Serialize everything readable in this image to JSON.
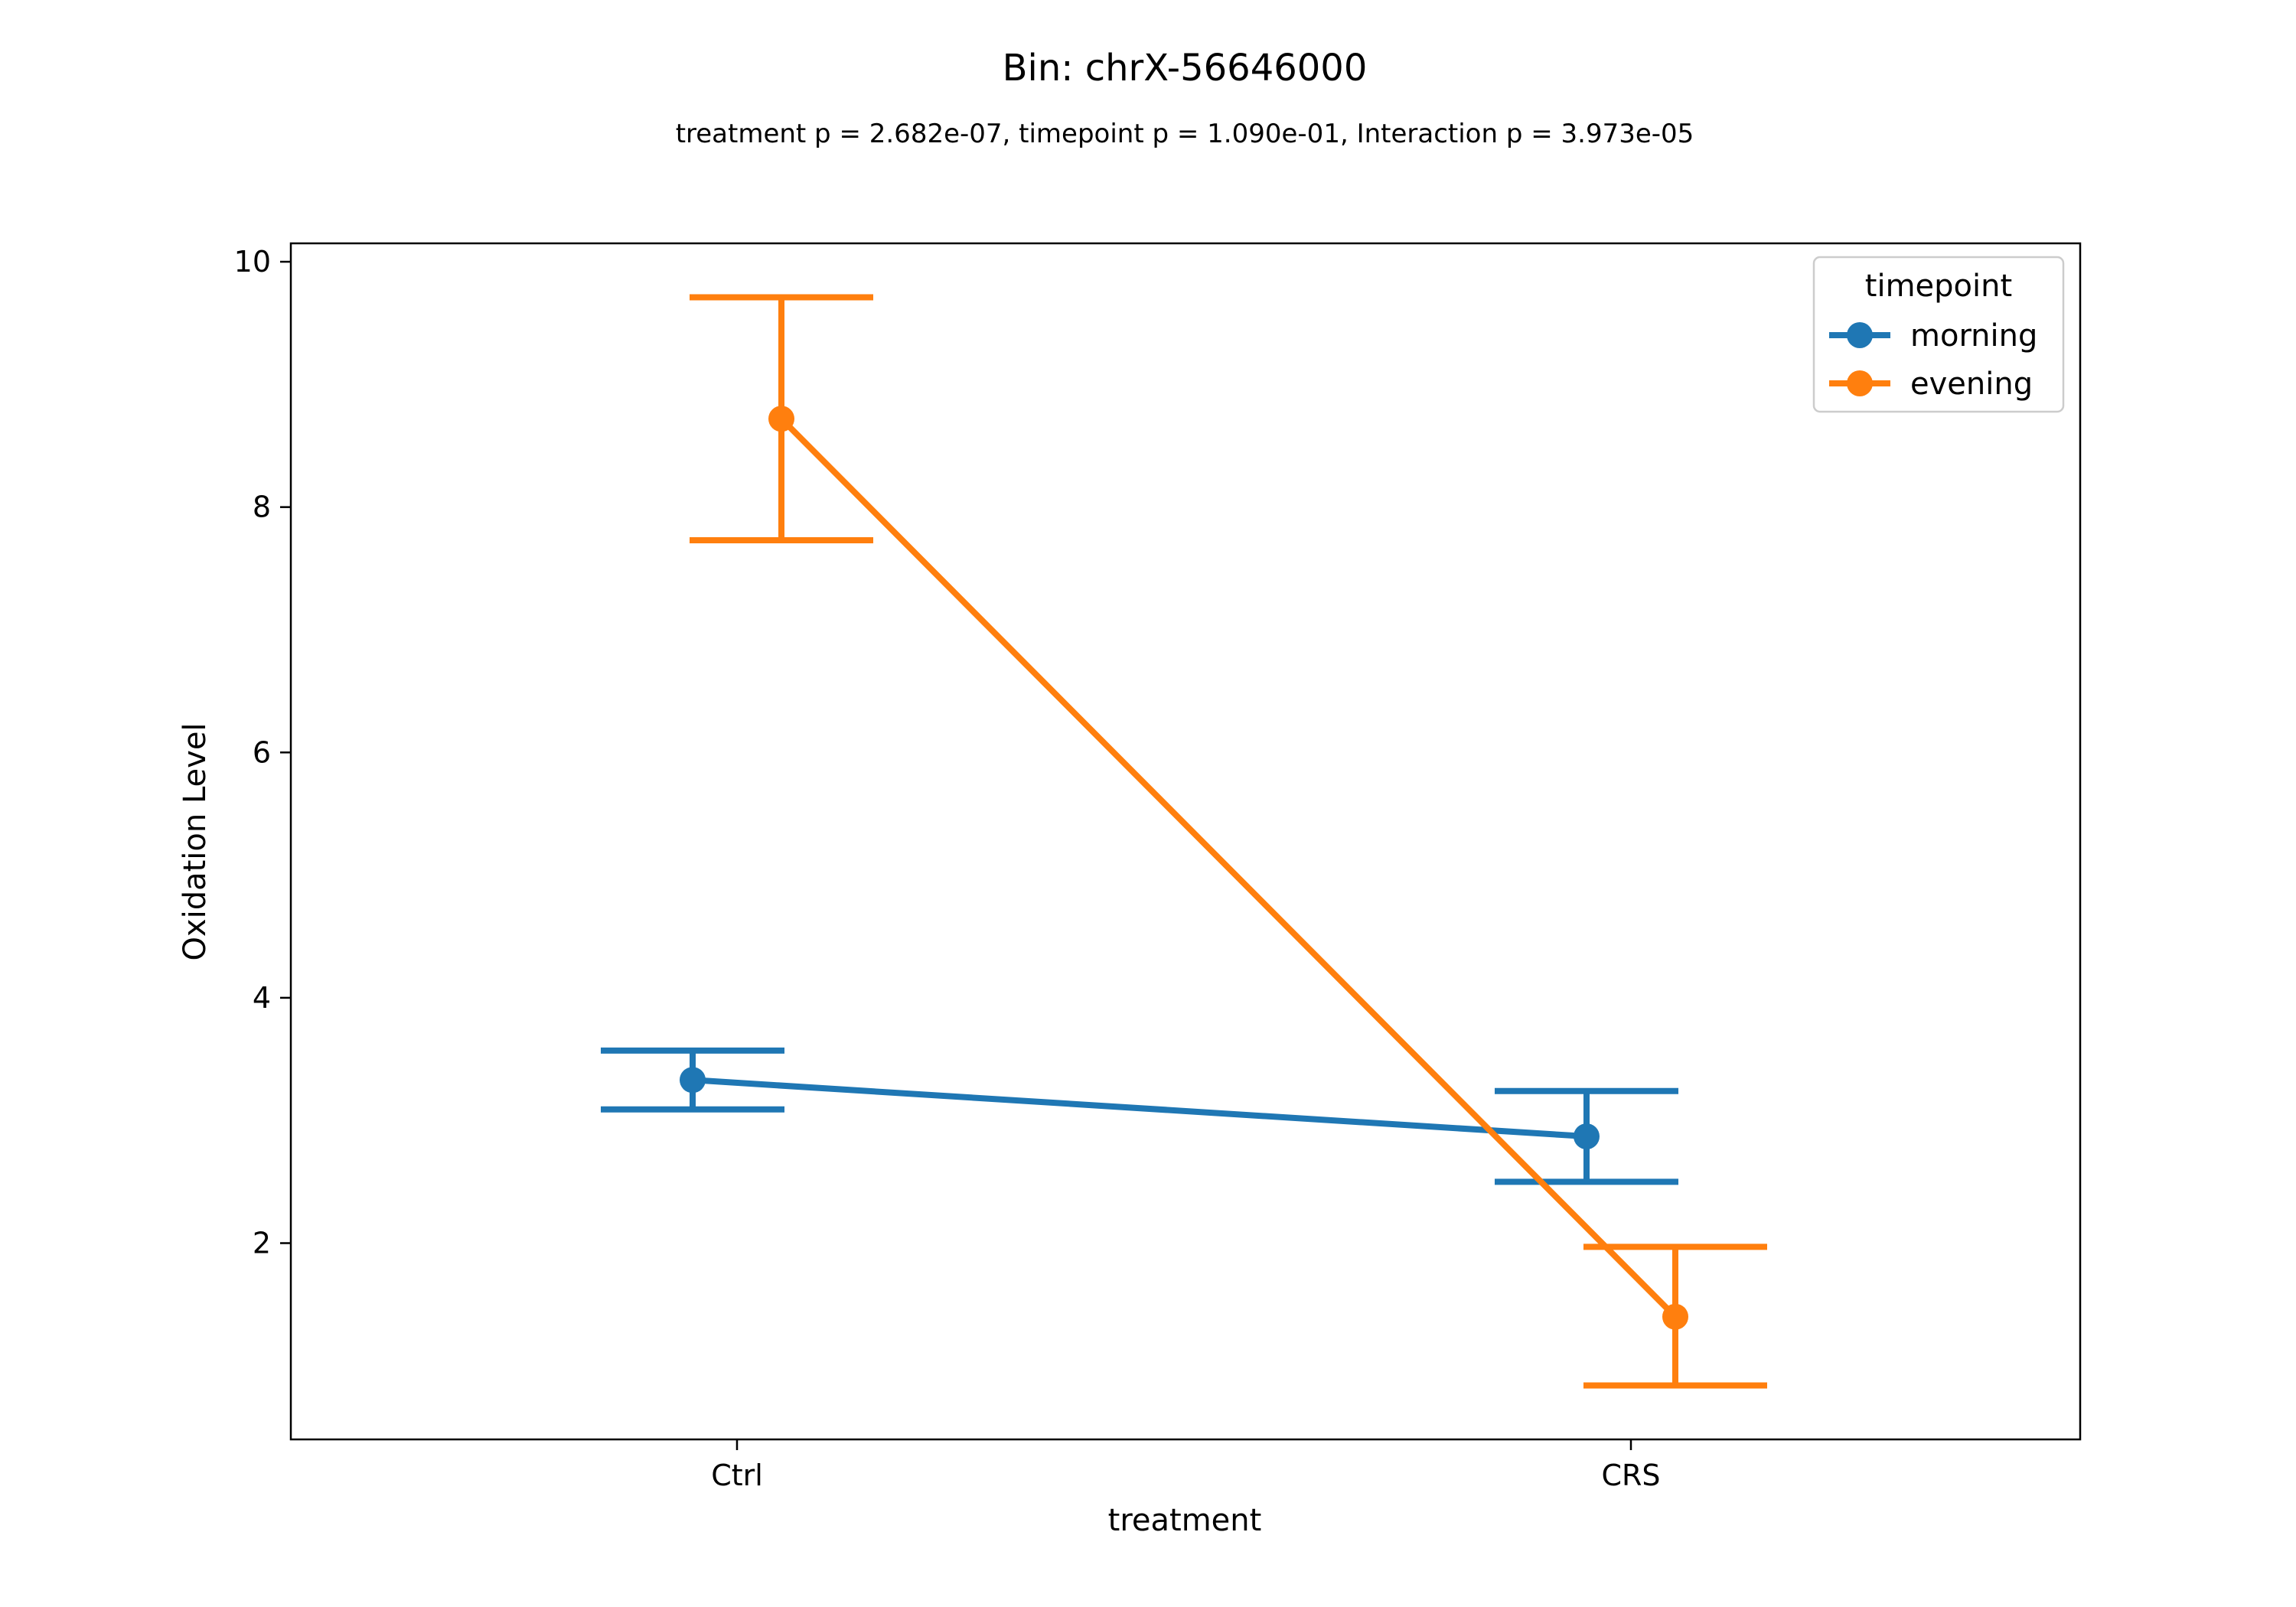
{
  "chart_data": {
    "type": "line",
    "title": "Bin: chrX-56646000",
    "subtitle": "treatment p = 2.682e-07, timepoint p = 1.090e-01, Interaction p = 3.973e-05",
    "xlabel": "treatment",
    "ylabel": "Oxidation Level",
    "categories": [
      "Ctrl",
      "CRS"
    ],
    "ylim": [
      0.4,
      10.15
    ],
    "yticks": [
      2,
      4,
      6,
      8,
      10
    ],
    "ytick_labels": [
      "2",
      "4",
      "6",
      "8",
      "10"
    ],
    "grid": false,
    "legend": {
      "title": "timepoint",
      "placement": "top-right"
    },
    "series": [
      {
        "name": "morning",
        "color": "#1f77b4",
        "values": [
          3.33,
          2.87
        ],
        "err_low": [
          3.09,
          2.5
        ],
        "err_high": [
          3.57,
          3.24
        ]
      },
      {
        "name": "evening",
        "color": "#ff7f0e",
        "values": [
          8.72,
          1.4
        ],
        "err_low": [
          7.73,
          0.84
        ],
        "err_high": [
          9.71,
          1.97
        ]
      }
    ]
  }
}
